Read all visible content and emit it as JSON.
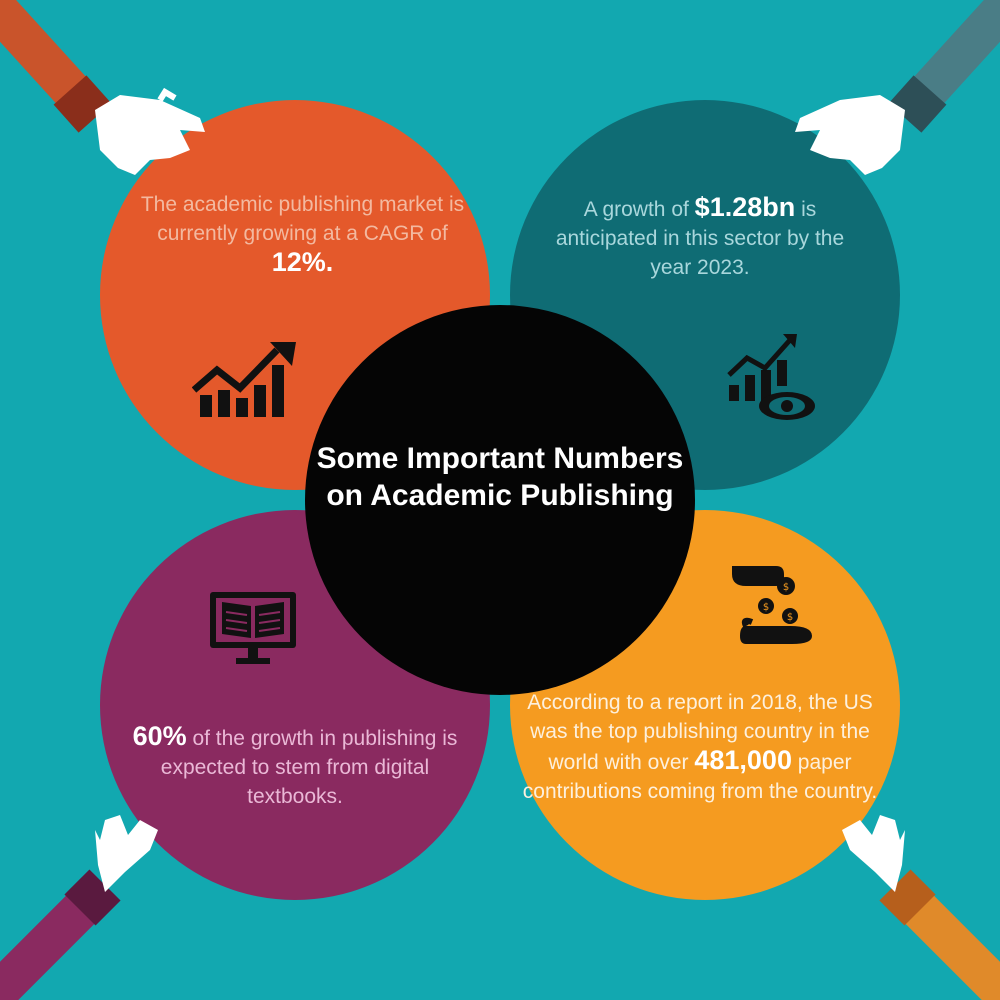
{
  "title": "Some Important Numbers on Academic Publishing",
  "colors": {
    "background": "#12a8b0",
    "top_left": "#e4592b",
    "top_right": "#0f6c74",
    "bottom_left": "#8a2a60",
    "bottom_right": "#f59b20",
    "center": "#050505"
  },
  "stats": {
    "top_left": {
      "text_before": "The academic publishing market is currently growing at a CAGR of ",
      "highlight": "12%.",
      "text_after": "",
      "icon": "growth-chart-icon"
    },
    "top_right": {
      "text_before": "A growth of ",
      "highlight": "$1.28bn",
      "text_after": " is anticipated in this sector by the year 2023.",
      "icon": "chart-eye-icon"
    },
    "bottom_left": {
      "text_before": "",
      "highlight": "60%",
      "text_after": " of the growth in publishing is expected to stem from digital textbooks.",
      "icon": "digital-book-icon"
    },
    "bottom_right": {
      "text_before": "According to a report in 2018, the US was the top publishing country in the world with over ",
      "highlight": "481,000",
      "text_after": " paper contributions coming from the country.",
      "icon": "money-hand-icon"
    }
  }
}
